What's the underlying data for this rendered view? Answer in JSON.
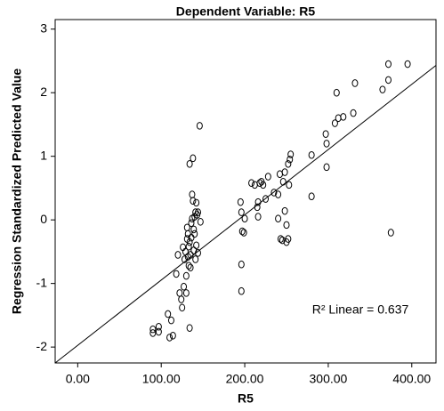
{
  "chart_data": {
    "type": "scatter",
    "title": "Dependent Variable: R5",
    "x_label": "R5",
    "y_label": "Regression Standardized Predicted Value",
    "annotation": "R² Linear = 0.637",
    "color": "#000000",
    "xlim": [
      -27,
      429
    ],
    "ylim": [
      -2.25,
      3.15
    ],
    "xticks": [
      {
        "value": 0,
        "label": "0.00"
      },
      {
        "value": 100,
        "label": "100.00"
      },
      {
        "value": 200,
        "label": "200.00"
      },
      {
        "value": 300,
        "label": "300.00"
      },
      {
        "value": 400,
        "label": "400.00"
      }
    ],
    "yticks": [
      -2,
      -1,
      0,
      1,
      2,
      3
    ],
    "x": [
      90,
      90,
      97,
      97,
      108,
      110,
      112,
      114,
      118,
      120,
      122,
      124,
      125,
      126,
      127,
      128,
      129,
      130,
      130,
      131,
      131,
      132,
      132,
      133,
      133,
      134,
      134,
      134,
      135,
      135,
      136,
      136,
      137,
      137,
      138,
      138,
      139,
      139,
      140,
      140,
      141,
      141,
      142,
      142,
      143,
      144,
      144,
      146,
      147,
      195,
      196,
      196,
      196,
      197,
      199,
      200,
      208,
      212,
      215,
      216,
      216,
      218,
      220,
      222,
      225,
      228,
      235,
      240,
      240,
      242,
      243,
      245,
      246,
      248,
      248,
      250,
      250,
      252,
      252,
      253,
      254,
      255,
      280,
      280,
      297,
      298,
      298,
      308,
      310,
      312,
      318,
      330,
      332,
      365,
      372,
      372,
      375,
      395
    ],
    "values": [
      -1.72,
      -1.78,
      -1.68,
      -1.76,
      -1.48,
      -1.85,
      -1.58,
      -1.82,
      -0.85,
      -0.55,
      -1.15,
      -1.25,
      -1.38,
      -0.43,
      -1.05,
      -0.62,
      -0.5,
      -0.88,
      -1.15,
      -0.12,
      -0.3,
      -0.22,
      -0.58,
      -0.42,
      -0.72,
      -0.35,
      0.88,
      -1.7,
      -0.55,
      -0.75,
      -0.05,
      -0.28,
      0.4,
      0.02,
      0.3,
      0.97,
      -0.15,
      -0.48,
      0.05,
      -0.22,
      0.12,
      -0.62,
      0.27,
      -0.4,
      0.08,
      0.12,
      -0.52,
      1.48,
      -0.03,
      0.28,
      0.12,
      -0.7,
      -1.12,
      -0.18,
      -0.2,
      0.02,
      0.58,
      0.55,
      0.2,
      0.28,
      0.05,
      0.58,
      0.6,
      0.55,
      0.33,
      0.68,
      0.43,
      0.4,
      0.02,
      0.72,
      -0.3,
      -0.32,
      0.6,
      0.75,
      0.14,
      -0.35,
      -0.08,
      0.88,
      -0.3,
      0.55,
      0.95,
      1.03,
      1.02,
      0.37,
      1.35,
      1.2,
      0.83,
      1.52,
      2.0,
      1.6,
      1.62,
      1.68,
      2.15,
      2.05,
      2.45,
      2.2,
      -0.2,
      2.45
    ],
    "fit_line": {
      "x": [
        -27,
        429
      ],
      "values": [
        -2.25,
        2.43
      ]
    }
  }
}
